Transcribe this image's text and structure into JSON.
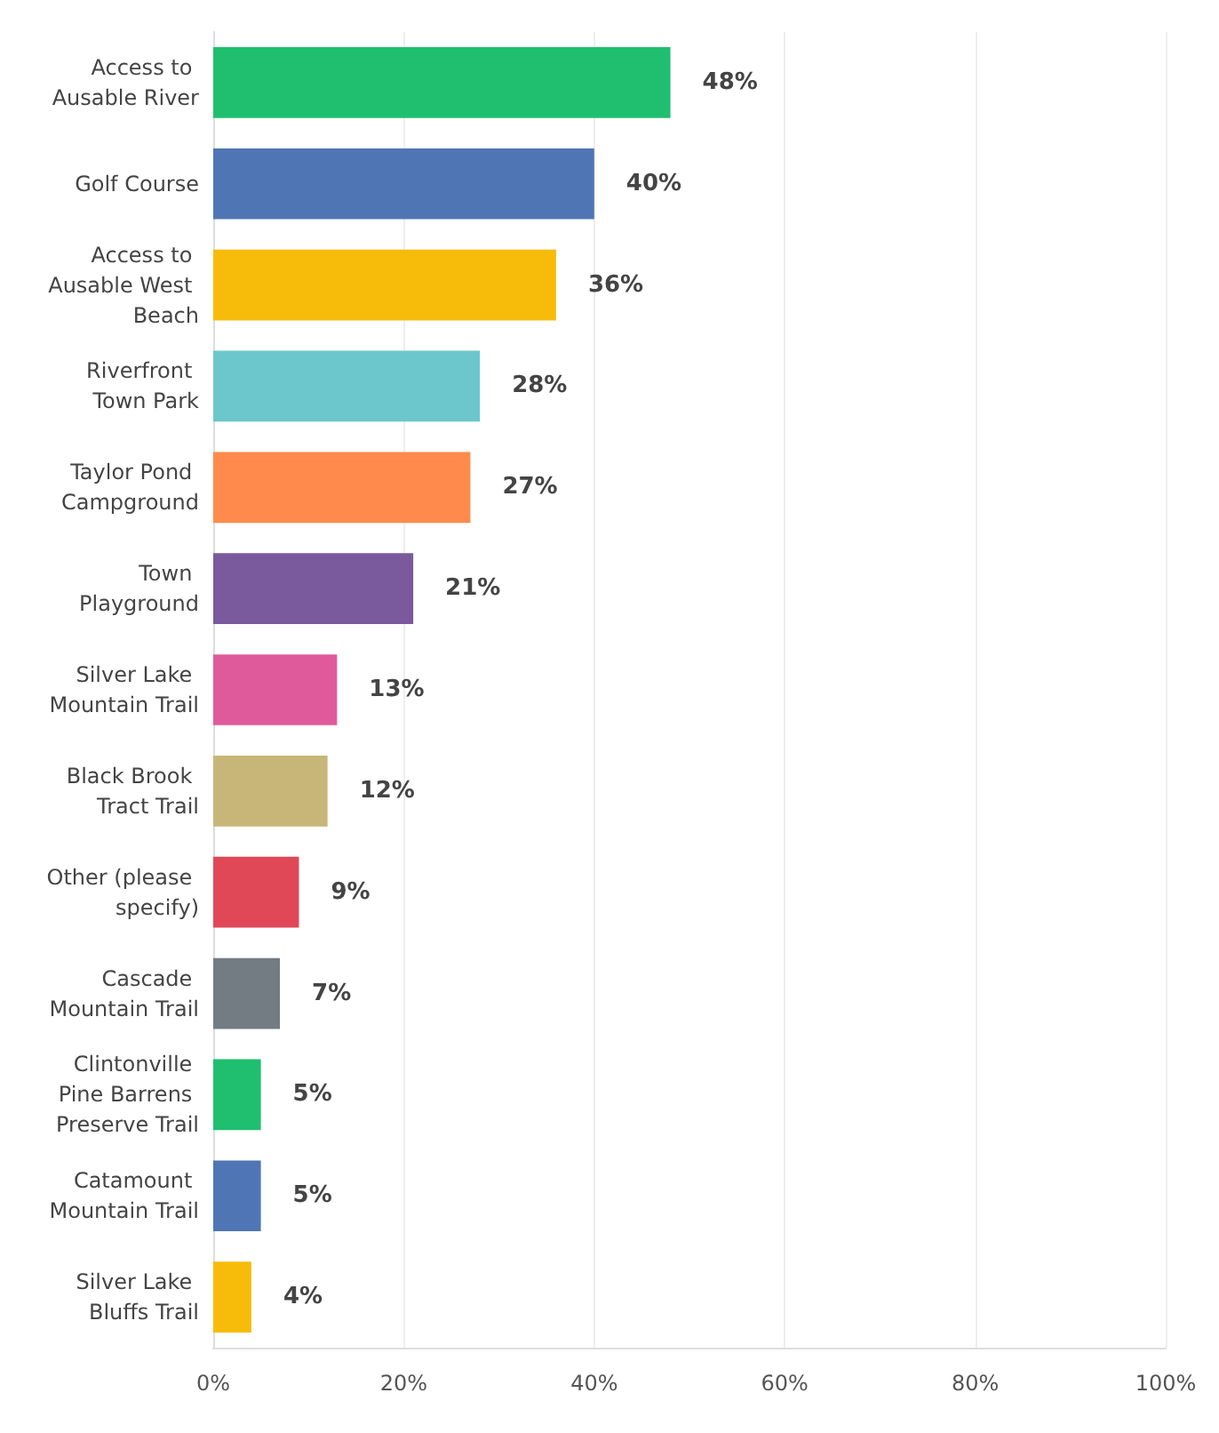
{
  "chart_data": {
    "type": "bar",
    "orientation": "horizontal",
    "categories": [
      "Access to Ausable River",
      "Golf Course",
      "Access to Ausable West Beach",
      "Riverfront Town Park",
      "Taylor Pond Campground",
      "Town Playground",
      "Silver Lake Mountain Trail",
      "Black Brook Tract Trail",
      "Other (please specify)",
      "Cascade Mountain Trail",
      "Clintonville Pine Barrens Preserve Trail",
      "Catamount Mountain Trail",
      "Silver Lake Bluffs Trail"
    ],
    "values": [
      48,
      40,
      36,
      28,
      27,
      21,
      13,
      12,
      9,
      7,
      5,
      5,
      4
    ],
    "value_labels": [
      "48%",
      "40%",
      "36%",
      "28%",
      "27%",
      "21%",
      "13%",
      "12%",
      "9%",
      "7%",
      "5%",
      "5%",
      "4%"
    ],
    "colors": [
      "#1fbf6f",
      "#4f75b4",
      "#f7bb0a",
      "#6bc7cc",
      "#ff8a4c",
      "#7a5a9c",
      "#df5a9a",
      "#c7b677",
      "#e04858",
      "#737b83",
      "#1fbf6f",
      "#4f75b4",
      "#f7bb0a"
    ],
    "xlim": [
      0,
      100
    ],
    "xticks": [
      {
        "value": 0,
        "label": "0%"
      },
      {
        "value": 20,
        "label": "20%"
      },
      {
        "value": 40,
        "label": "40%"
      },
      {
        "value": 60,
        "label": "60%"
      },
      {
        "value": 80,
        "label": "80%"
      },
      {
        "value": 100,
        "label": "100%"
      }
    ],
    "grid": "x"
  }
}
